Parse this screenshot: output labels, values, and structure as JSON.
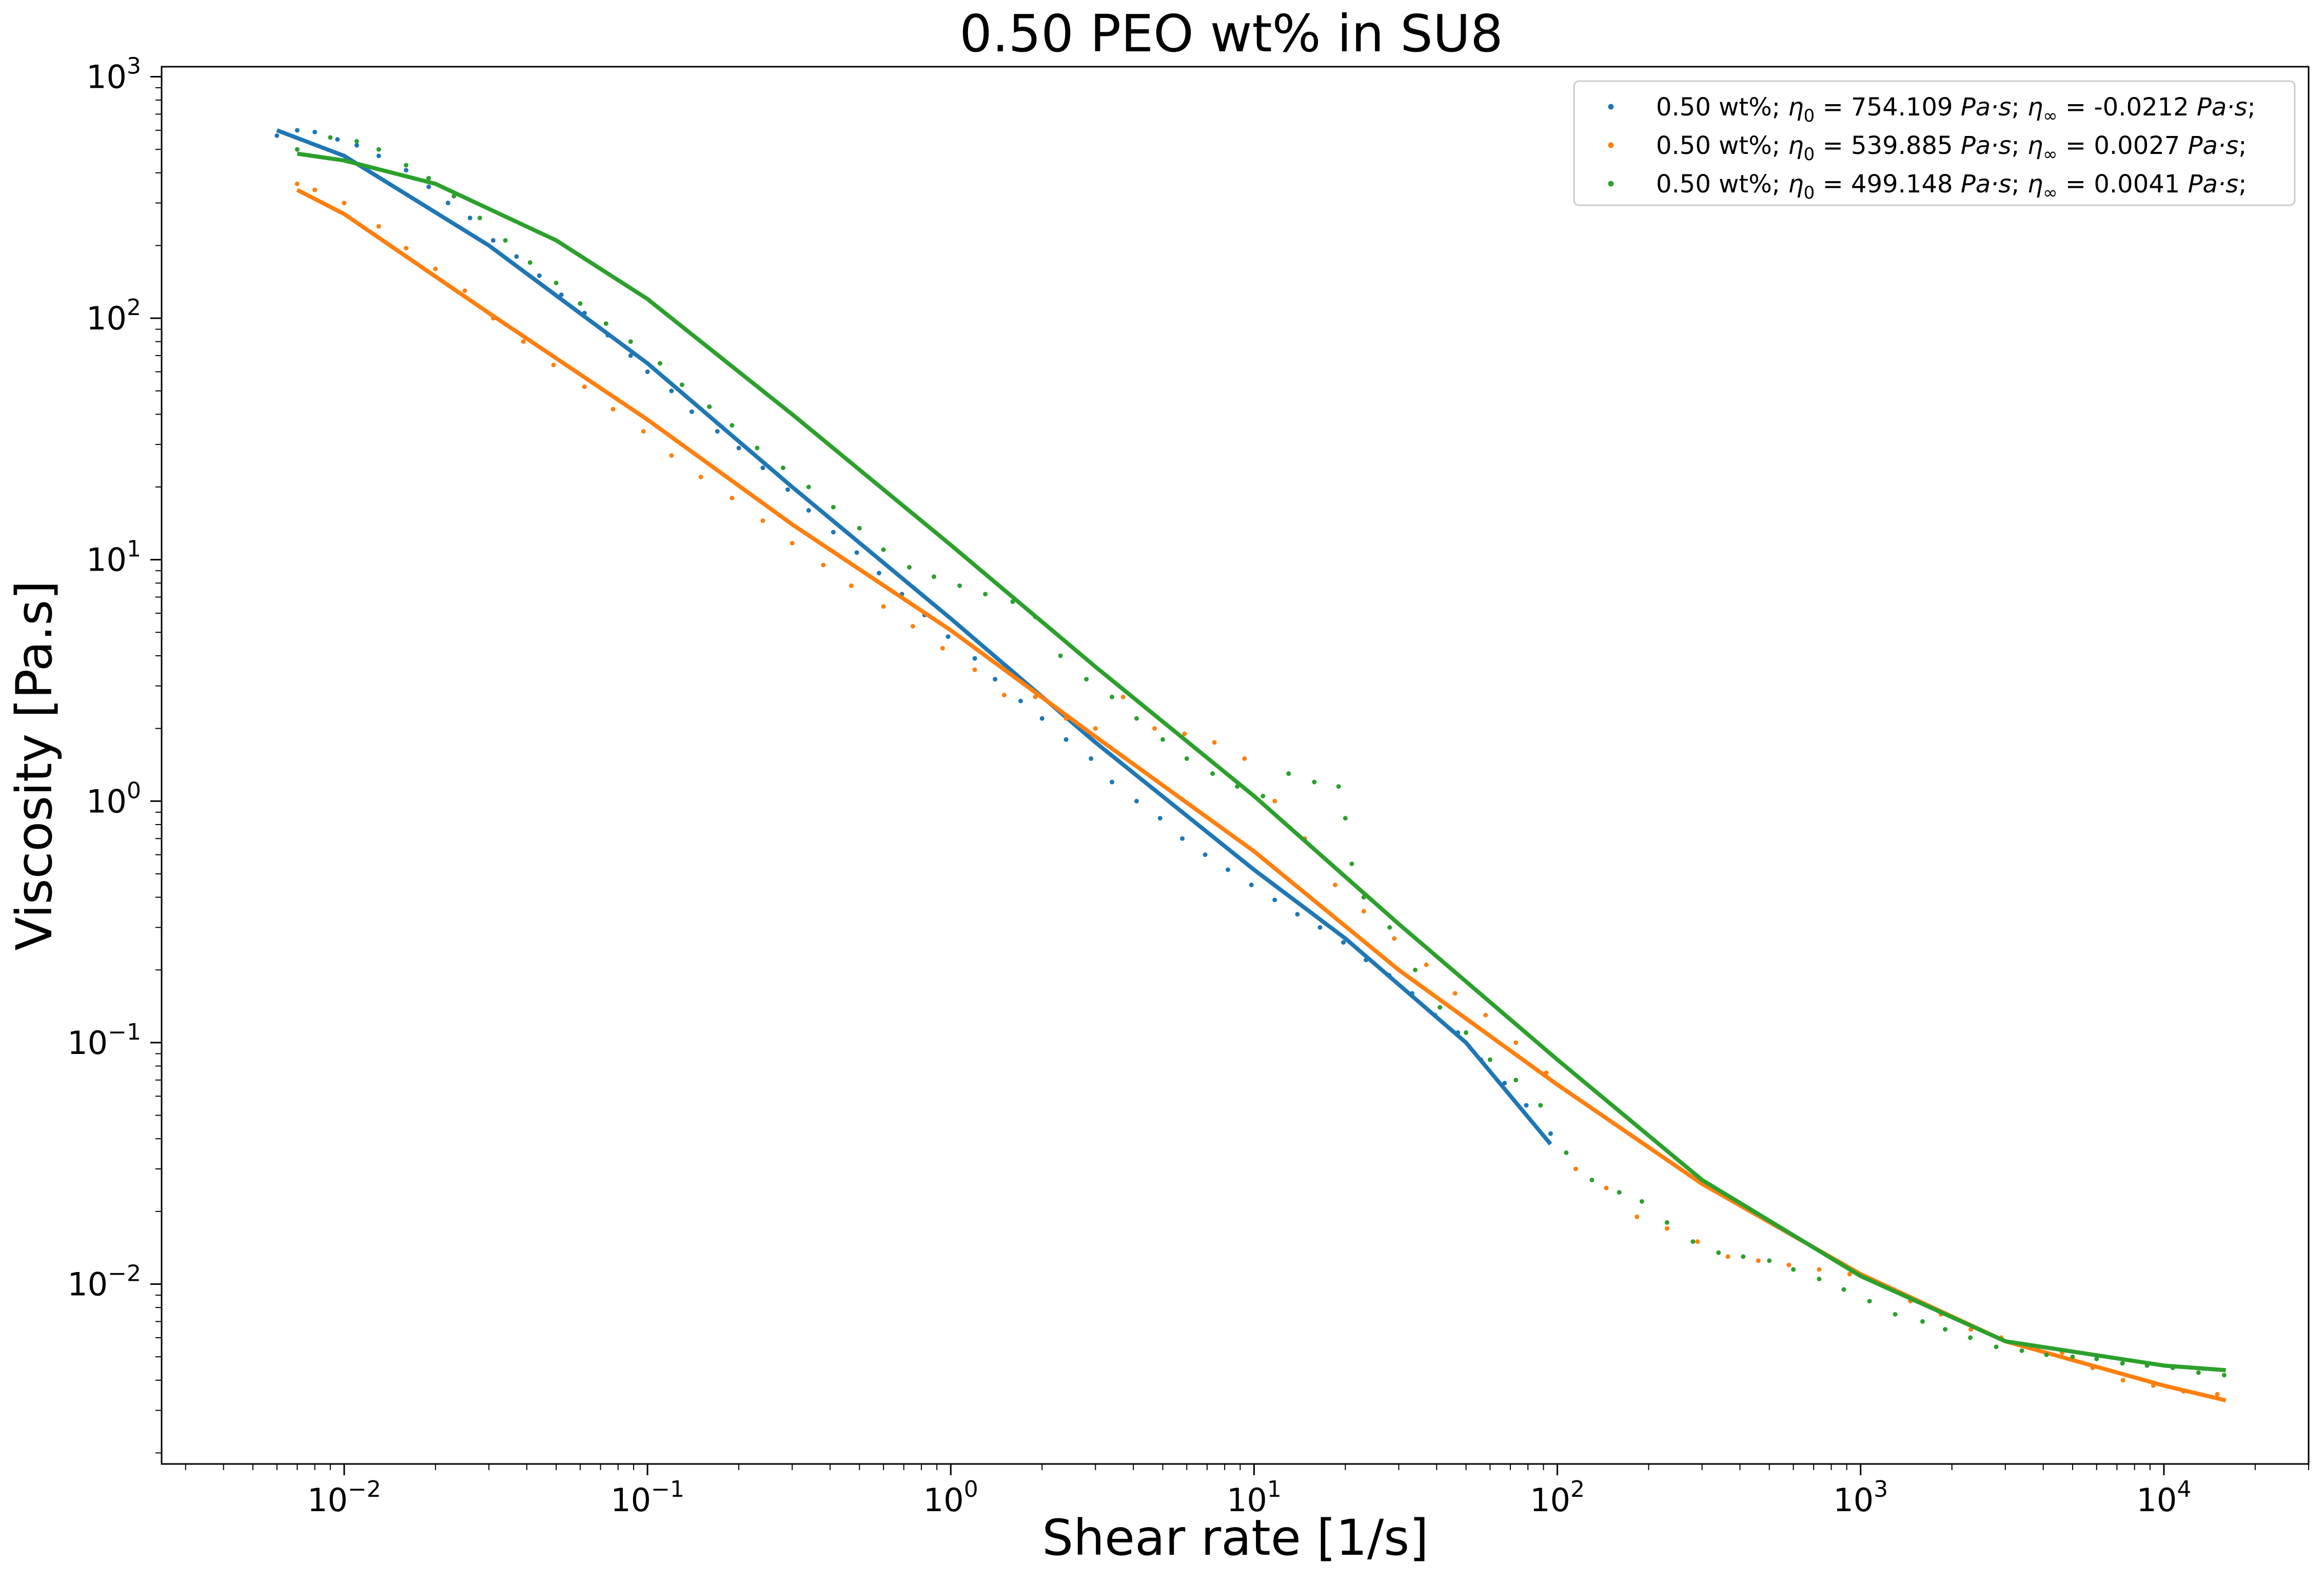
{
  "chart_data": {
    "type": "scatter",
    "title": "0.50 PEO wt% in SU8",
    "xlabel": "Shear rate [1/s]",
    "ylabel": "Viscosity [Pa.s]",
    "xscale": "log",
    "yscale": "log",
    "xlim": [
      0.0025,
      30000
    ],
    "ylim": [
      0.0018,
      1100
    ],
    "grid": false,
    "legend_position": "top-right",
    "x_ticks": [
      {
        "value": 0.01,
        "base": "10",
        "exp": "−2"
      },
      {
        "value": 0.1,
        "base": "10",
        "exp": "−1"
      },
      {
        "value": 1,
        "base": "10",
        "exp": "0"
      },
      {
        "value": 10,
        "base": "10",
        "exp": "1"
      },
      {
        "value": 100,
        "base": "10",
        "exp": "2"
      },
      {
        "value": 1000,
        "base": "10",
        "exp": "3"
      },
      {
        "value": 10000,
        "base": "10",
        "exp": "4"
      }
    ],
    "y_ticks": [
      {
        "value": 0.01,
        "base": "10",
        "exp": "−2"
      },
      {
        "value": 0.1,
        "base": "10",
        "exp": "−1"
      },
      {
        "value": 1,
        "base": "10",
        "exp": "0"
      },
      {
        "value": 10,
        "base": "10",
        "exp": "1"
      },
      {
        "value": 100,
        "base": "10",
        "exp": "2"
      },
      {
        "value": 1000,
        "base": "10",
        "exp": "3"
      }
    ],
    "series": [
      {
        "name": "0.50 wt%; η0 = 754.109 Pa·s; η∞ = -0.0212 Pa·s;",
        "legend": {
          "prefix": "0.50 wt%; ",
          "eta0": "754.109",
          "etainf": "-0.0212",
          "unit": "Pa·s"
        },
        "color": "#1f77b4",
        "points_x": [
          0.006,
          0.007,
          0.008,
          0.0095,
          0.011,
          0.013,
          0.016,
          0.019,
          0.022,
          0.026,
          0.031,
          0.037,
          0.044,
          0.052,
          0.062,
          0.074,
          0.088,
          0.1,
          0.12,
          0.14,
          0.17,
          0.2,
          0.24,
          0.29,
          0.34,
          0.41,
          0.49,
          0.58,
          0.69,
          0.82,
          0.98,
          1.2,
          1.4,
          1.7,
          2.0,
          2.4,
          2.9,
          3.4,
          4.1,
          4.9,
          5.8,
          6.9,
          8.2,
          9.8,
          11.7,
          13.9,
          16.5,
          19.7,
          23.4,
          27.9,
          33.2,
          39.5,
          47,
          56,
          67,
          79,
          95
        ],
        "points_y": [
          570,
          600,
          590,
          550,
          520,
          470,
          410,
          350,
          300,
          260,
          210,
          180,
          150,
          125,
          105,
          85,
          70,
          60,
          50,
          41,
          34,
          29,
          24,
          19.5,
          16,
          13,
          10.7,
          8.8,
          7.2,
          5.9,
          4.8,
          3.9,
          3.2,
          2.6,
          2.2,
          1.8,
          1.5,
          1.2,
          1.0,
          0.85,
          0.7,
          0.6,
          0.52,
          0.45,
          0.39,
          0.34,
          0.3,
          0.26,
          0.22,
          0.19,
          0.16,
          0.13,
          0.11,
          0.085,
          0.068,
          0.055,
          0.042
        ],
        "fit_x": [
          0.006,
          0.01,
          0.03,
          0.1,
          0.3,
          1,
          3,
          10,
          20,
          50,
          95
        ],
        "fit_y": [
          600,
          470,
          200,
          65,
          20,
          5.7,
          1.75,
          0.52,
          0.27,
          0.1,
          0.038
        ]
      },
      {
        "name": "0.50 wt%; η0 = 539.885 Pa·s; η∞ = 0.0027 Pa·s;",
        "legend": {
          "prefix": "0.50 wt%; ",
          "eta0": "539.885",
          "etainf": "0.0027",
          "unit": "Pa·s"
        },
        "color": "#ff7f0e",
        "points_x": [
          0.007,
          0.008,
          0.01,
          0.013,
          0.016,
          0.02,
          0.025,
          0.031,
          0.039,
          0.049,
          0.062,
          0.077,
          0.097,
          0.12,
          0.15,
          0.19,
          0.24,
          0.3,
          0.38,
          0.47,
          0.6,
          0.75,
          0.94,
          1.2,
          1.5,
          1.9,
          2.4,
          3.0,
          3.7,
          4.7,
          5.9,
          7.4,
          9.3,
          11.7,
          14.7,
          18.5,
          23,
          29,
          37,
          46,
          58,
          73,
          92,
          115,
          145,
          183,
          230,
          290,
          365,
          460,
          580,
          730,
          920,
          1160,
          1460,
          1840,
          2310,
          2910,
          3670,
          4620,
          5820,
          7330,
          9230,
          11600,
          15000
        ],
        "points_y": [
          360,
          340,
          300,
          240,
          195,
          160,
          130,
          100,
          80,
          64,
          52,
          42,
          34,
          27,
          22,
          18,
          14.5,
          11.7,
          9.5,
          7.8,
          6.4,
          5.3,
          4.3,
          3.5,
          2.75,
          2.7,
          2.2,
          2.0,
          2.7,
          2.0,
          1.9,
          1.75,
          1.5,
          1.0,
          0.7,
          0.45,
          0.35,
          0.27,
          0.21,
          0.16,
          0.13,
          0.1,
          0.075,
          0.03,
          0.025,
          0.019,
          0.017,
          0.015,
          0.013,
          0.0125,
          0.012,
          0.0115,
          0.011,
          0.01,
          0.0085,
          0.0075,
          0.0065,
          0.006,
          0.0055,
          0.0052,
          0.0045,
          0.004,
          0.0038,
          0.0036,
          0.0035
        ],
        "fit_x": [
          0.007,
          0.01,
          0.03,
          0.1,
          0.3,
          1,
          3,
          10,
          30,
          100,
          300,
          1000,
          3000,
          10000,
          16000
        ],
        "fit_y": [
          340,
          270,
          105,
          38,
          14,
          5.1,
          1.85,
          0.62,
          0.2,
          0.067,
          0.026,
          0.011,
          0.0058,
          0.0038,
          0.0033
        ]
      },
      {
        "name": "0.50 wt%; η0 = 499.148 Pa·s; η∞ = 0.0041 Pa·s;",
        "legend": {
          "prefix": "0.50 wt%; ",
          "eta0": "499.148",
          "etainf": "0.0041",
          "unit": "Pa·s"
        },
        "color": "#2ca02c",
        "points_x": [
          0.007,
          0.009,
          0.011,
          0.013,
          0.016,
          0.019,
          0.023,
          0.028,
          0.034,
          0.041,
          0.05,
          0.06,
          0.073,
          0.088,
          0.11,
          0.13,
          0.16,
          0.19,
          0.23,
          0.28,
          0.34,
          0.41,
          0.5,
          0.6,
          0.73,
          0.88,
          1.07,
          1.3,
          1.6,
          1.9,
          2.3,
          2.8,
          3.4,
          4.1,
          5.0,
          6.0,
          7.3,
          8.8,
          10.7,
          13,
          15.8,
          19,
          20,
          21,
          23,
          28,
          34,
          41,
          50,
          60,
          73,
          88,
          107,
          130,
          160,
          190,
          230,
          280,
          340,
          410,
          500,
          600,
          730,
          880,
          1070,
          1300,
          1600,
          1900,
          2300,
          2800,
          3400,
          4100,
          5000,
          6000,
          7300,
          8800,
          10700,
          13000,
          15800
        ],
        "points_y": [
          500,
          560,
          540,
          500,
          430,
          380,
          320,
          260,
          210,
          170,
          140,
          115,
          95,
          80,
          65,
          53,
          43,
          36,
          29,
          24,
          20,
          16.5,
          13.5,
          11,
          9.3,
          8.5,
          7.8,
          7.2,
          6.7,
          5.8,
          4.0,
          3.2,
          2.7,
          2.2,
          1.8,
          1.5,
          1.3,
          1.15,
          1.05,
          1.3,
          1.2,
          1.15,
          0.85,
          0.55,
          0.4,
          0.3,
          0.2,
          0.14,
          0.11,
          0.085,
          0.07,
          0.055,
          0.035,
          0.027,
          0.024,
          0.022,
          0.018,
          0.015,
          0.0135,
          0.013,
          0.0125,
          0.0115,
          0.0105,
          0.0095,
          0.0085,
          0.0075,
          0.007,
          0.0065,
          0.006,
          0.0055,
          0.0053,
          0.0051,
          0.005,
          0.0049,
          0.0047,
          0.0046,
          0.0045,
          0.0043,
          0.0042
        ],
        "fit_x": [
          0.007,
          0.01,
          0.02,
          0.05,
          0.1,
          0.3,
          1,
          3,
          10,
          30,
          100,
          300,
          1000,
          3000,
          10000,
          16000
        ],
        "fit_y": [
          480,
          450,
          360,
          210,
          120,
          40,
          11.5,
          3.6,
          1.05,
          0.31,
          0.085,
          0.027,
          0.0108,
          0.0058,
          0.0046,
          0.0044
        ]
      }
    ]
  }
}
